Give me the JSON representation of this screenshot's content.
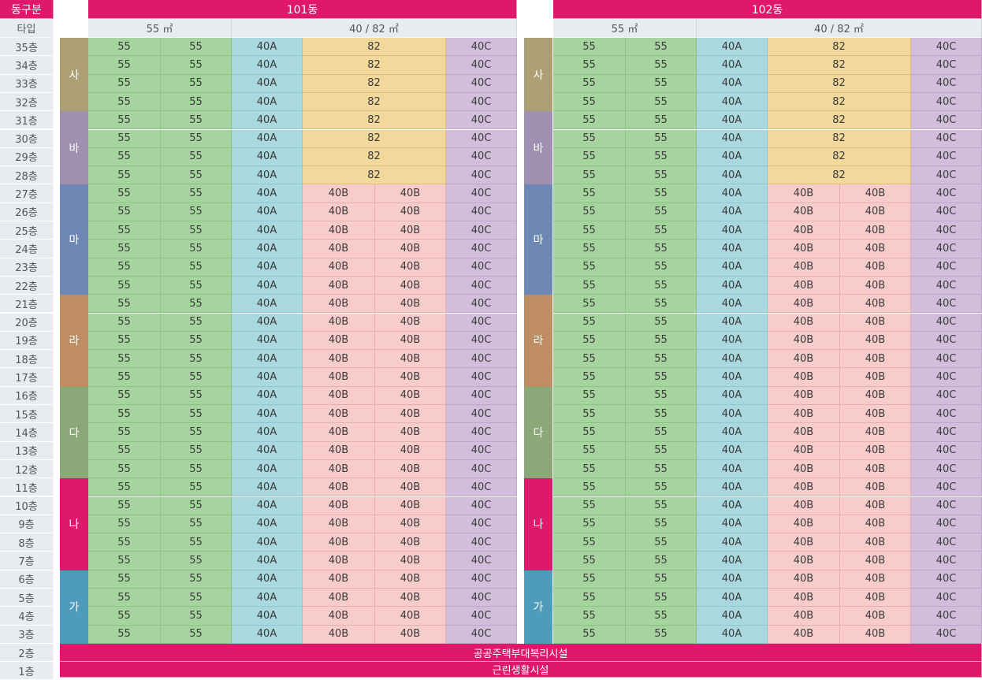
{
  "header": {
    "corner_label": "동구분",
    "type_label": "타입",
    "building_101": "101동",
    "building_102": "102동",
    "type_55": "55 ㎡",
    "type_40_82": "40 / 82 ㎡"
  },
  "floors": [
    "35층",
    "34층",
    "33층",
    "32층",
    "31층",
    "30층",
    "29층",
    "28층",
    "27층",
    "26층",
    "25층",
    "24층",
    "23층",
    "22층",
    "21층",
    "20층",
    "19층",
    "18층",
    "17층",
    "16층",
    "15층",
    "14층",
    "13층",
    "12층",
    "11층",
    "10층",
    "9층",
    "8층",
    "7층",
    "6층",
    "5층",
    "4층",
    "3층",
    "2층",
    "1층"
  ],
  "zones": [
    {
      "label": "사",
      "from": 35,
      "to": 32,
      "color": "#ad9f74"
    },
    {
      "label": "바",
      "from": 31,
      "to": 28,
      "color": "#a08fb1"
    },
    {
      "label": "마",
      "from": 27,
      "to": 22,
      "color": "#6e88b5"
    },
    {
      "label": "라",
      "from": 21,
      "to": 17,
      "color": "#bf8d64"
    },
    {
      "label": "다",
      "from": 16,
      "to": 12,
      "color": "#8ba878"
    },
    {
      "label": "나",
      "from": 11,
      "to": 7,
      "color": "#e0186c"
    },
    {
      "label": "가",
      "from": 6,
      "to": 3,
      "color": "#4e9bbc"
    }
  ],
  "unit_labels": {
    "u55": "55",
    "u40A": "40A",
    "u82": "82",
    "u40B": "40B",
    "u40C": "40C"
  },
  "merged_82_floors": [
    35,
    34,
    33,
    32,
    31,
    30,
    29,
    28
  ],
  "footer": {
    "floor2_facility": "공공주택부대복리시설",
    "floor1_facility": "근린생활시설"
  }
}
